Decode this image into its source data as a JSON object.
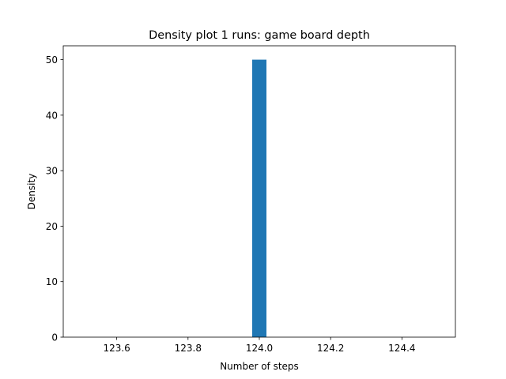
{
  "chart_data": {
    "type": "bar",
    "title": "Density plot 1 runs: game board depth",
    "xlabel": "Number of steps",
    "ylabel": "Density",
    "xlim": [
      123.45,
      124.55
    ],
    "ylim": [
      0,
      52.5
    ],
    "xticks": [
      123.6,
      123.8,
      124.0,
      124.2,
      124.4
    ],
    "xtick_labels": [
      "123.6",
      "123.8",
      "124.0",
      "124.2",
      "124.4"
    ],
    "yticks": [
      0,
      10,
      20,
      30,
      40,
      50
    ],
    "ytick_labels": [
      "0",
      "10",
      "20",
      "30",
      "40",
      "50"
    ],
    "bins": [
      {
        "x_start": 123.98,
        "x_end": 124.02,
        "value": 50
      }
    ],
    "bar_color": "#1f77b4",
    "grid": false,
    "legend": "none"
  }
}
